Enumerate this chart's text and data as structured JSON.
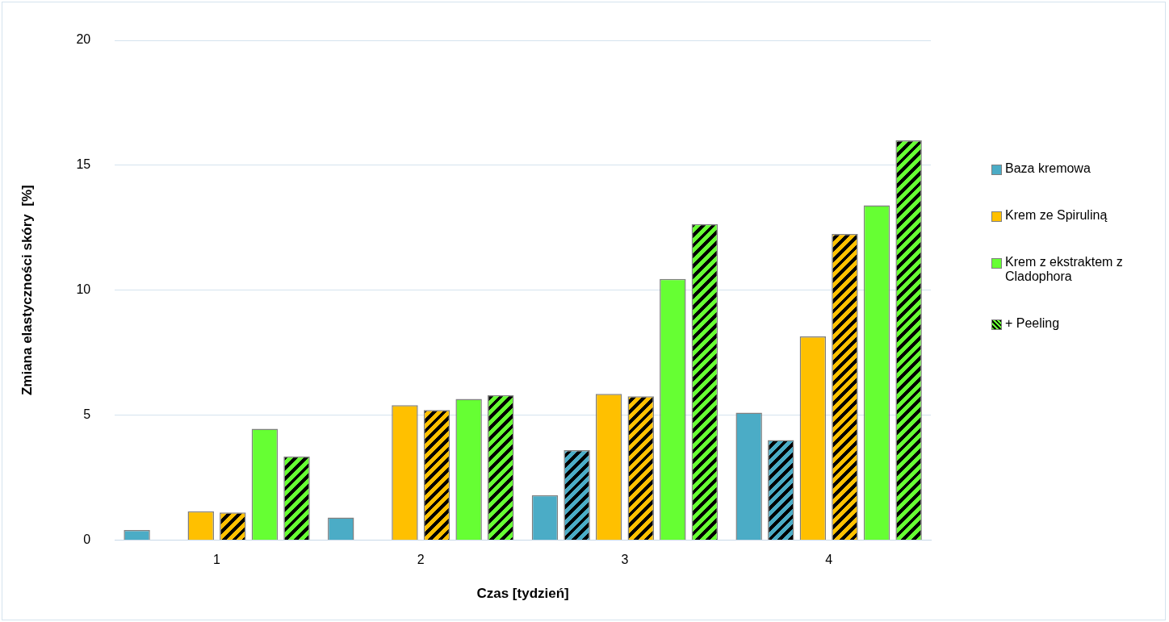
{
  "chart_data": {
    "type": "bar",
    "xlabel": "Czas [tydzień]",
    "ylabel": "Zmiana elastyczności skóry  [%]",
    "categories": [
      "1",
      "2",
      "3",
      "4"
    ],
    "series": [
      {
        "name": "Baza kremowa",
        "color": "#4bacc6",
        "values": [
          0.4,
          0.9,
          1.8,
          5.1
        ]
      },
      {
        "color": "#4bacc6",
        "values": [
          null,
          null,
          3.6,
          4.0
        ]
      },
      {
        "name": "Krem ze Spiruliną",
        "color": "#ffc000",
        "values": [
          1.15,
          5.4,
          5.85,
          8.15
        ]
      },
      {
        "color": "#ffc000",
        "values": [
          1.1,
          5.2,
          5.75,
          12.25
        ]
      },
      {
        "name": "Krem z ekstraktem z Cladophora",
        "color": "#66ff33",
        "values": [
          4.45,
          5.65,
          10.45,
          13.4
        ]
      },
      {
        "name": "+ Peeling",
        "color": "#66ff33",
        "values": [
          3.35,
          5.8,
          12.65,
          16.0
        ]
      }
    ],
    "ylim": [
      0,
      20
    ],
    "yticks": [
      0,
      5,
      10,
      15,
      20
    ],
    "grid": "y",
    "legend": "right"
  }
}
